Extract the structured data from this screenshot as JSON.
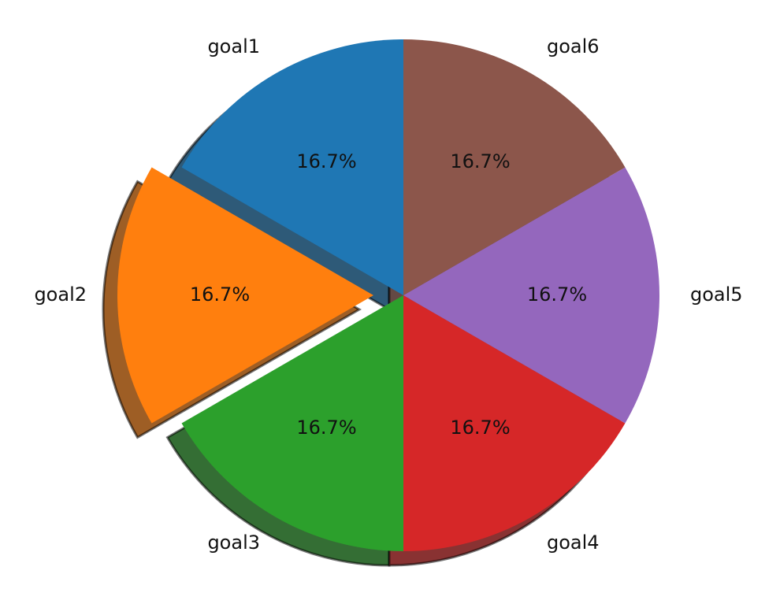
{
  "chart_data": {
    "type": "pie",
    "categories": [
      "goal1",
      "goal2",
      "goal3",
      "goal4",
      "goal5",
      "goal6"
    ],
    "values": [
      1,
      1,
      1,
      1,
      1,
      1
    ],
    "percent_labels": [
      "16.7%",
      "16.7%",
      "16.7%",
      "16.7%",
      "16.7%",
      "16.7%"
    ],
    "colors": [
      "#1f77b4",
      "#ff7f0e",
      "#2ca02c",
      "#d62728",
      "#9467bd",
      "#8c564b"
    ],
    "exploded": [
      "goal2"
    ],
    "shadow": true,
    "start_angle_deg": 90,
    "direction": "counterclockwise",
    "title": ""
  }
}
